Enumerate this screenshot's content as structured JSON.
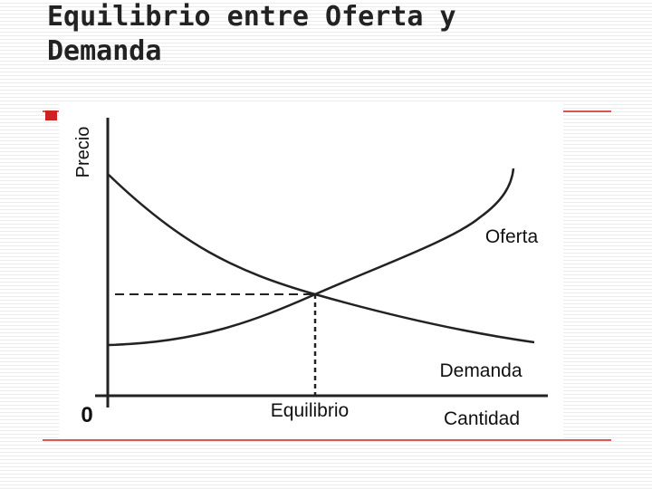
{
  "slide": {
    "title": "Equilibrio entre Oferta y Demanda"
  },
  "diagram": {
    "y_axis_label": "Precio",
    "x_axis_label": "Cantidad",
    "origin": "0",
    "supply_label": "Oferta",
    "demand_label": "Demanda",
    "equilibrium_label": "Equilibrio"
  }
}
